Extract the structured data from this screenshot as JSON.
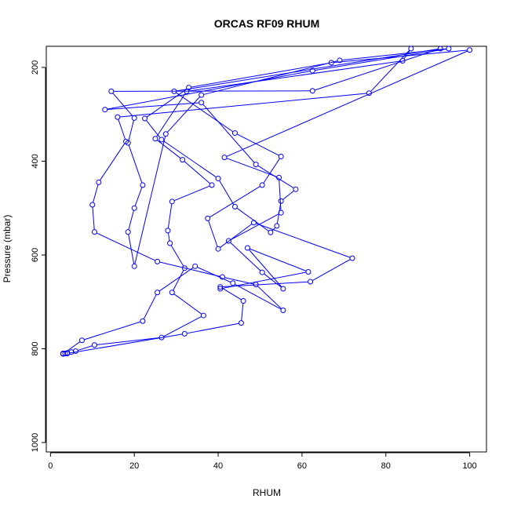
{
  "chart_data": {
    "type": "line",
    "title": "ORCAS RF09 RHUM",
    "xlabel": "RHUM",
    "ylabel": "Pressure (mbar)",
    "xlim": [
      -1,
      104
    ],
    "ylim": [
      1020,
      155
    ],
    "y_inverted": true,
    "x_ticks": [
      0,
      20,
      40,
      60,
      80,
      100
    ],
    "y_ticks": [
      200,
      400,
      600,
      800,
      1000
    ],
    "grid": false,
    "legend": "none",
    "colors": {
      "series": "#0000ff",
      "axis": "#000000",
      "background": "#ffffff"
    },
    "marker": "open-circle",
    "series": [
      {
        "values": [
          {
            "x": 3.0,
            "y": 810
          },
          {
            "x": 3.5,
            "y": 810
          },
          {
            "x": 4.0,
            "y": 809
          },
          {
            "x": 5.0,
            "y": 807
          },
          {
            "x": 6.0,
            "y": 805
          },
          {
            "x": 10.5,
            "y": 792
          },
          {
            "x": 26.5,
            "y": 776
          },
          {
            "x": 36.5,
            "y": 729
          },
          {
            "x": 29.0,
            "y": 680
          },
          {
            "x": 32.0,
            "y": 628
          },
          {
            "x": 28.5,
            "y": 575
          },
          {
            "x": 28.0,
            "y": 548
          },
          {
            "x": 29.0,
            "y": 486
          },
          {
            "x": 38.5,
            "y": 451
          },
          {
            "x": 31.5,
            "y": 397
          },
          {
            "x": 25.0,
            "y": 352
          },
          {
            "x": 32.5,
            "y": 251
          },
          {
            "x": 84.0,
            "y": 186
          },
          {
            "x": 86.0,
            "y": 160
          },
          {
            "x": 76.0,
            "y": 255
          },
          {
            "x": 16.0,
            "y": 306
          },
          {
            "x": 18.0,
            "y": 358
          },
          {
            "x": 11.5,
            "y": 445
          },
          {
            "x": 10.0,
            "y": 493
          },
          {
            "x": 10.5,
            "y": 551
          },
          {
            "x": 25.5,
            "y": 614
          },
          {
            "x": 41.0,
            "y": 647
          },
          {
            "x": 49.0,
            "y": 663
          },
          {
            "x": 55.5,
            "y": 718
          },
          {
            "x": 43.5,
            "y": 660
          },
          {
            "x": 34.5,
            "y": 624
          },
          {
            "x": 25.5,
            "y": 680
          },
          {
            "x": 22.0,
            "y": 741
          },
          {
            "x": 7.5,
            "y": 782
          },
          {
            "x": 3.0,
            "y": 811
          },
          {
            "x": 4.0,
            "y": 810
          },
          {
            "x": 32.0,
            "y": 768
          },
          {
            "x": 45.5,
            "y": 745
          },
          {
            "x": 46.0,
            "y": 698
          },
          {
            "x": 40.5,
            "y": 668
          },
          {
            "x": 62.0,
            "y": 657
          },
          {
            "x": 72.0,
            "y": 607
          },
          {
            "x": 48.5,
            "y": 531
          },
          {
            "x": 40.0,
            "y": 587
          },
          {
            "x": 37.5,
            "y": 522
          },
          {
            "x": 50.5,
            "y": 451
          },
          {
            "x": 55.0,
            "y": 390
          },
          {
            "x": 44.0,
            "y": 340
          },
          {
            "x": 29.5,
            "y": 251
          },
          {
            "x": 93.0,
            "y": 160
          },
          {
            "x": 62.5,
            "y": 250
          },
          {
            "x": 14.5,
            "y": 251
          },
          {
            "x": 20.0,
            "y": 308
          },
          {
            "x": 18.5,
            "y": 361
          },
          {
            "x": 22.0,
            "y": 451
          },
          {
            "x": 20.0,
            "y": 500
          },
          {
            "x": 18.5,
            "y": 551
          },
          {
            "x": 20.0,
            "y": 624
          },
          {
            "x": 27.5,
            "y": 342
          },
          {
            "x": 36.0,
            "y": 259
          },
          {
            "x": 69.0,
            "y": 185
          },
          {
            "x": 95.0,
            "y": 160
          },
          {
            "x": 62.5,
            "y": 207
          },
          {
            "x": 13.0,
            "y": 290
          },
          {
            "x": 36.0,
            "y": 275
          },
          {
            "x": 49.0,
            "y": 407
          },
          {
            "x": 58.5,
            "y": 460
          },
          {
            "x": 55.0,
            "y": 485
          },
          {
            "x": 54.0,
            "y": 538
          },
          {
            "x": 52.5,
            "y": 552
          },
          {
            "x": 44.0,
            "y": 497
          },
          {
            "x": 40.0,
            "y": 437
          },
          {
            "x": 26.5,
            "y": 354
          },
          {
            "x": 22.5,
            "y": 309
          },
          {
            "x": 33.0,
            "y": 243
          },
          {
            "x": 67.0,
            "y": 190
          },
          {
            "x": 100.0,
            "y": 163
          },
          {
            "x": 41.5,
            "y": 392
          },
          {
            "x": 54.5,
            "y": 435
          },
          {
            "x": 55.0,
            "y": 510
          },
          {
            "x": 42.5,
            "y": 570
          },
          {
            "x": 50.5,
            "y": 637
          },
          {
            "x": 55.5,
            "y": 672
          },
          {
            "x": 47.0,
            "y": 585
          },
          {
            "x": 61.5,
            "y": 636
          },
          {
            "x": 40.5,
            "y": 672
          }
        ]
      }
    ]
  }
}
